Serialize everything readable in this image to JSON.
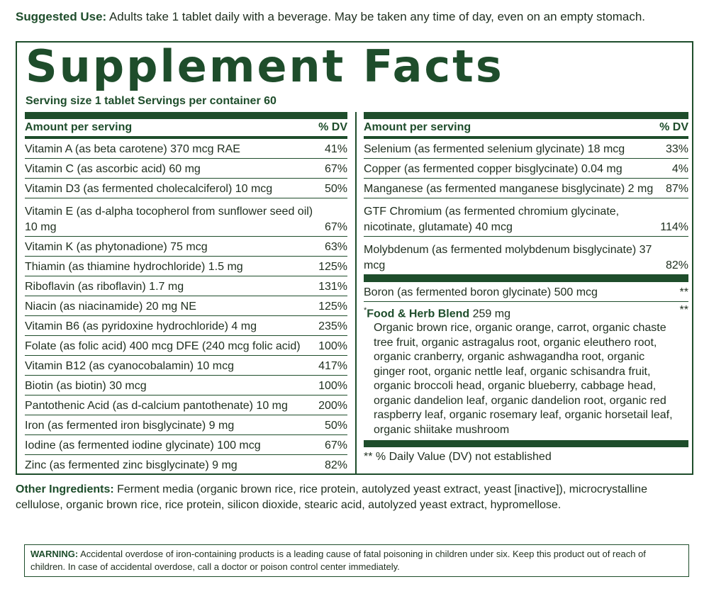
{
  "suggested_use": {
    "label": "Suggested Use:",
    "text": " Adults take 1 tablet daily with a beverage. May be taken any time of day, even on an empty stomach."
  },
  "facts": {
    "title": "Supplement Facts",
    "serving": "Serving size 1 tablet  Servings per container 60",
    "col_header_amount": "Amount per serving",
    "col_header_dv": "% DV",
    "left_rows": [
      {
        "name": "Vitamin A (as beta carotene) 370 mcg RAE",
        "dv": "41%"
      },
      {
        "name": "Vitamin C (as ascorbic acid) 60 mg",
        "dv": "67%"
      },
      {
        "name": "Vitamin D3 (as fermented cholecalciferol) 10 mcg",
        "dv": "50%"
      },
      {
        "name": "Vitamin E (as d-alpha tocopherol from sunflower seed oil) 10 mg",
        "dv": "67%"
      },
      {
        "name": "Vitamin K (as phytonadione) 75 mcg",
        "dv": "63%"
      },
      {
        "name": "Thiamin (as thiamine hydrochloride) 1.5 mg",
        "dv": "125%"
      },
      {
        "name": "Riboflavin (as riboflavin) 1.7 mg",
        "dv": "131%"
      },
      {
        "name": "Niacin (as niacinamide) 20 mg NE",
        "dv": "125%"
      },
      {
        "name": "Vitamin B6 (as pyridoxine hydrochloride) 4 mg",
        "dv": "235%"
      },
      {
        "name": "Folate (as folic acid) 400 mcg DFE (240 mcg folic acid)",
        "dv": "100%"
      },
      {
        "name": "Vitamin B12 (as cyanocobalamin) 10 mcg",
        "dv": "417%"
      },
      {
        "name": "Biotin (as biotin) 30 mcg",
        "dv": "100%"
      },
      {
        "name": "Pantothenic Acid (as d-calcium pantothenate) 10 mg",
        "dv": "200%"
      },
      {
        "name": "Iron (as fermented iron bisglycinate) 9 mg",
        "dv": "50%"
      },
      {
        "name": "Iodine (as fermented iodine glycinate) 100 mcg",
        "dv": "67%"
      },
      {
        "name": "Zinc (as fermented zinc bisglycinate) 9 mg",
        "dv": "82%"
      }
    ],
    "right_rows": [
      {
        "name": "Selenium (as fermented selenium glycinate) 18 mcg",
        "dv": "33%"
      },
      {
        "name": "Copper (as fermented copper bisglycinate) 0.04 mg",
        "dv": "4%"
      },
      {
        "name": "Manganese (as fermented manganese bisglycinate) 2 mg",
        "dv": "87%"
      },
      {
        "name": "GTF Chromium (as fermented chromium glycinate, nicotinate, glutamate) 40 mcg",
        "dv": "114%"
      },
      {
        "name": "Molybdenum (as fermented molybdenum bisglycinate) 37 mcg",
        "dv": "82%"
      }
    ],
    "boron": {
      "name": "Boron (as fermented boron glycinate) 500 mcg",
      "dv": "**"
    },
    "blend": {
      "mark": "*",
      "name": "Food & Herb Blend",
      "amount": " 259 mg",
      "dv": "**",
      "items": "Organic brown rice, organic orange, carrot, organic chaste tree fruit, organic astragalus root, organic eleuthero root, organic cranberry, organic ashwagandha root, organic ginger root, organic nettle leaf, organic schisandra fruit, organic broccoli head, organic blueberry, cabbage head, organic dandelion leaf, organic dandelion root, organic red raspberry leaf, organic rosemary leaf, organic horsetail leaf, organic shiitake mushroom"
    },
    "footnote": "** % Daily Value (DV) not established"
  },
  "other_ingredients": {
    "label": "Other Ingredients:",
    "text": " Ferment media (organic brown rice, rice protein, autolyzed yeast extract, yeast [inactive]), microcrystalline cellulose, organic brown rice, rice protein, silicon dioxide, stearic acid, autolyzed yeast extract, hypromellose."
  },
  "warning": {
    "label": "WARNING:",
    "text": " Accidental overdose of iron-containing products is a leading cause of fatal poisoning in children under six. Keep this product out of reach of children. In case of accidental overdose, call a doctor or poison control center immediately."
  },
  "colors": {
    "brand_green": "#1e4d2b"
  }
}
